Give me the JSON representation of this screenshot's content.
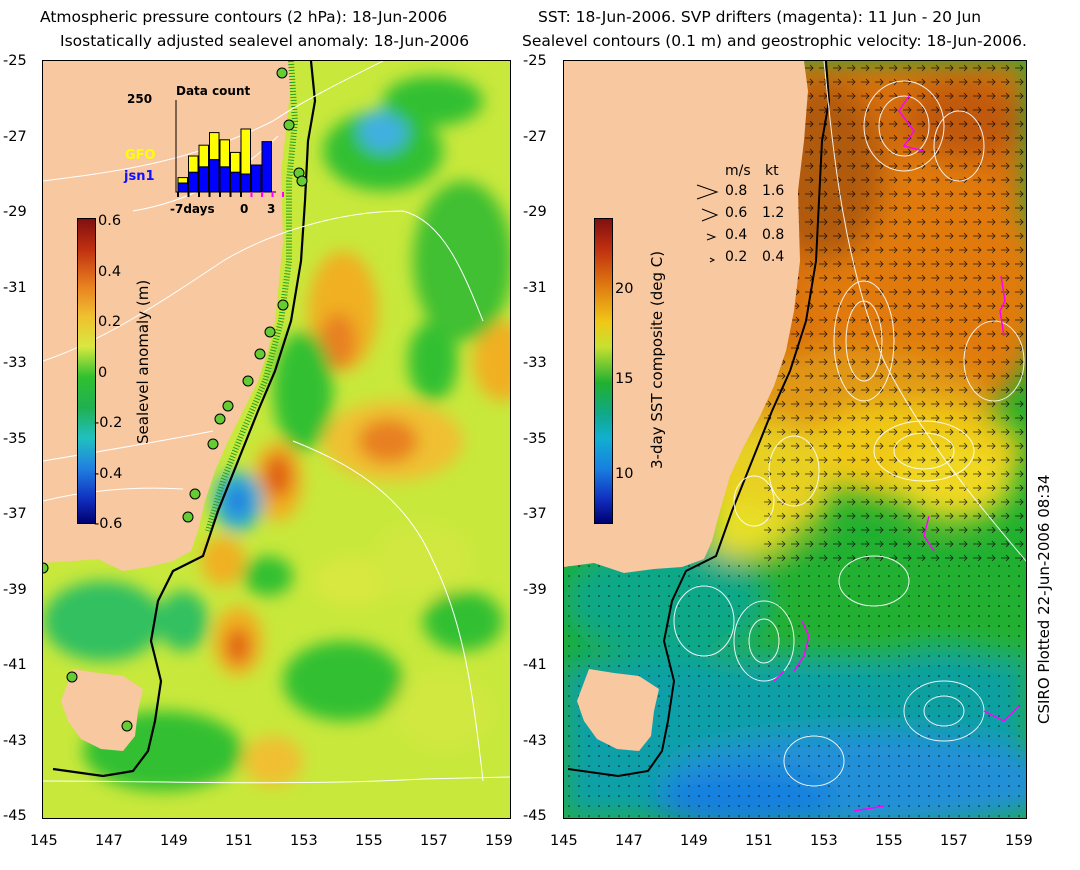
{
  "left_title": {
    "line1": "Atmospheric pressure contours (2 hPa): 18-Jun-2006",
    "line2": "Isostatically adjusted sealevel anomaly: 18-Jun-2006"
  },
  "right_title": {
    "line1": "SST: 18-Jun-2006. SVP drifters (magenta): 11 Jun - 20 Jun",
    "line2": "Sealevel contours (0.1 m) and geostrophic velocity: 18-Jun-2006."
  },
  "axes": {
    "lat_ticks": [
      "-25",
      "-27",
      "-29",
      "-31",
      "-33",
      "-35",
      "-37",
      "-39",
      "-41",
      "-43",
      "-45"
    ],
    "lon_ticks": [
      "145",
      "147",
      "149",
      "151",
      "153",
      "155",
      "157",
      "159"
    ]
  },
  "left_colorbar": {
    "title": "Sealevel anomaly (m)",
    "ticks": [
      "0.6",
      "0.4",
      "0.2",
      "0",
      "-0.2",
      "-0.4",
      "-0.6"
    ]
  },
  "right_colorbar": {
    "title": "3-day SST composite (deg C)",
    "ticks": [
      "20",
      "15",
      "10"
    ]
  },
  "inset": {
    "title": "Data count",
    "ymax": "250",
    "legend_gfo": "GFO",
    "legend_jsn": "jsn1",
    "x_left": "-7days",
    "x_zero": "0",
    "x_right": "3",
    "gfo_color": "#ffff00",
    "jsn_color": "#0000ff",
    "chart_data": {
      "type": "bar",
      "series": [
        {
          "name": "GFO",
          "values": [
            40,
            100,
            130,
            165,
            145,
            110,
            175,
            0,
            0
          ]
        },
        {
          "name": "jsn1",
          "values": [
            25,
            55,
            70,
            90,
            70,
            55,
            50,
            75,
            140
          ]
        }
      ],
      "ylim": [
        0,
        250
      ]
    }
  },
  "velocity_legend": {
    "header_ms": "m/s",
    "header_kt": "kt",
    "rows": [
      {
        "ms": "0.8",
        "kt": "1.6"
      },
      {
        "ms": "0.6",
        "kt": "1.2"
      },
      {
        "ms": "0.4",
        "kt": "0.8"
      },
      {
        "ms": "0.2",
        "kt": "0.4"
      }
    ]
  },
  "stamp": "CSIRO Plotted 22-Jun-2006 08:34",
  "colors": {
    "land": "#f8c8a0",
    "coastline_depth": "#000000",
    "contour": "#ffffff",
    "drifter": "#ff00ff",
    "tide_gauge": "#66cc33"
  }
}
